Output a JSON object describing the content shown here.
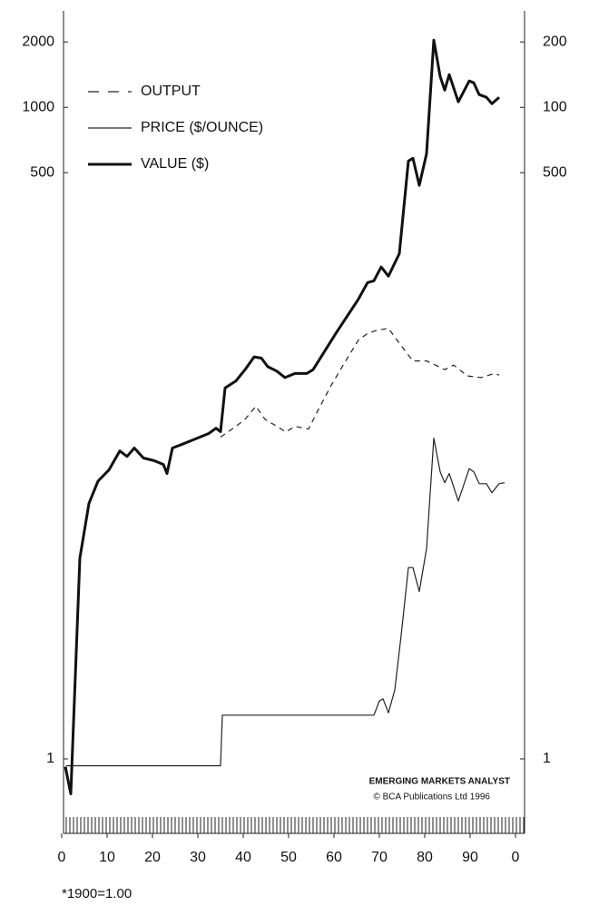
{
  "chart_data": {
    "type": "line",
    "log_scale": true,
    "xlim": [
      0.4,
      102
    ],
    "xticks": [
      0,
      10,
      20,
      30,
      40,
      50,
      60,
      70,
      80,
      90,
      {
        "value": 100,
        "label": "0"
      }
    ],
    "ylim": [
      0.54,
      2780
    ],
    "yticks": [
      1,
      500,
      1000,
      2000
    ],
    "y2lim": [
      0.54,
      2780
    ],
    "y2ticks": [
      1,
      {
        "value": 500,
        "label": "500"
      },
      {
        "value": 1000,
        "label": "100"
      },
      {
        "value": 2000,
        "label": "200"
      }
    ],
    "legend": "upper left",
    "source": [
      "EMERGING MARKETS ANALYST",
      "© BCA Publications Ltd  1996"
    ],
    "footnote": "*1900=1.00",
    "series": [
      {
        "name": "OUTPUT",
        "color": "#222",
        "style": "dashed",
        "width": 1.2,
        "x": [
          35,
          38.4,
          40.4,
          42.8,
          44.8,
          47.4,
          49.4,
          51.4,
          54.4,
          56.4,
          59.4,
          62.4,
          65.4,
          67.4,
          69.4,
          72,
          74.4,
          77.4,
          80.4,
          82.4,
          84.4,
          86.4,
          89.4,
          92.4,
          95.4,
          96.4
        ],
        "values": [
          30.3,
          34,
          36.6,
          42,
          36.6,
          34,
          32,
          34,
          33,
          40,
          52.5,
          67,
          85,
          91,
          94,
          96,
          82,
          68,
          68,
          65,
          62,
          65,
          58,
          57,
          59.5,
          58.5
        ]
      },
      {
        "name": "PRICE ($/OUNCE)",
        "color": "#222",
        "style": "solid",
        "width": 1.2,
        "x": [
          1,
          35,
          35.4,
          68.8,
          70,
          70.8,
          72,
          73.4,
          74.8,
          76.4,
          77.4,
          78.8,
          80.4,
          82,
          83.4,
          84.4,
          85.4,
          87.4,
          89.8,
          90.8,
          92,
          93.6,
          94.8,
          96.4,
          97.6
        ],
        "values": [
          0.93,
          0.93,
          1.59,
          1.59,
          1.85,
          1.89,
          1.63,
          2.08,
          3.7,
          7.6,
          7.6,
          5.9,
          9.3,
          30,
          21,
          18.7,
          20.6,
          15.4,
          21.7,
          21,
          18.5,
          18.5,
          16.8,
          18.5,
          18.7
        ]
      },
      {
        "name": "VALUE ($)",
        "color": "#111",
        "style": "solid",
        "width": 3,
        "x": [
          0.8,
          2,
          4,
          6,
          8,
          10.4,
          12.8,
          14.4,
          16,
          18,
          20.4,
          22.4,
          23.2,
          24.4,
          26.4,
          29.4,
          32.4,
          34,
          35,
          36,
          38.4,
          40.4,
          42.4,
          44,
          45.4,
          47.4,
          49.2,
          51.4,
          54,
          55.4,
          60.4,
          65.4,
          67.4,
          68.8,
          70.4,
          72,
          74.4,
          76.4,
          77.4,
          78.8,
          80.4,
          82,
          83.4,
          84.4,
          85.4,
          87.4,
          89.8,
          90.8,
          92,
          93.6,
          94.8,
          96.4
        ],
        "values": [
          0.92,
          0.69,
          8.4,
          15,
          19,
          21.4,
          26.2,
          24.7,
          27,
          24.3,
          23.6,
          22.7,
          20.6,
          27,
          28,
          29.7,
          31.5,
          33.3,
          32.1,
          51,
          55,
          62,
          71,
          70,
          64,
          61,
          57,
          59.5,
          59.5,
          62,
          91,
          131,
          156,
          159,
          184,
          167,
          212,
          566,
          583,
          437,
          612,
          2040,
          1388,
          1200,
          1415,
          1060,
          1322,
          1297,
          1145,
          1112,
          1040,
          1112
        ]
      }
    ]
  }
}
